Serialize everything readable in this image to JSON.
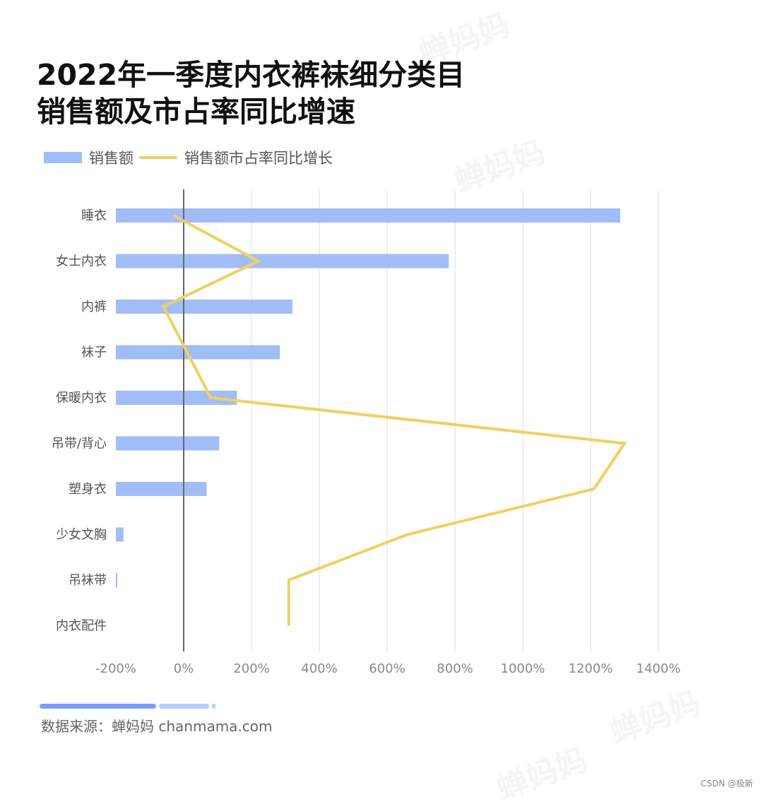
{
  "title_lines": [
    "2022年一季度内衣裤袜细分类目",
    "销售额及市占率同比增速"
  ],
  "legend": {
    "bar": "销售额",
    "line": "销售额市占率同比增长"
  },
  "colors": {
    "bar": "#a0bdf8",
    "line": "#f2cf61",
    "zero_line": "#666666",
    "grid": "#e9e9e9",
    "progress_dark": "#7aa0f6",
    "progress_light": "#b9cefa"
  },
  "chart_data": {
    "type": "bar",
    "categories": [
      "睡衣",
      "女士内衣",
      "内裤",
      "袜子",
      "保暖内衣",
      "吊带/背心",
      "塑身衣",
      "少女文胸",
      "吊袜带",
      "内衣配件"
    ],
    "series": [
      {
        "name": "销售额",
        "type": "bar",
        "values": [
          100,
          66,
          35,
          32.5,
          24,
          20.5,
          18,
          1.5,
          0.2,
          0
        ]
      },
      {
        "name": "销售额市占率同比增长",
        "type": "line",
        "values": [
          -30,
          220,
          -60,
          10,
          80,
          1300,
          1210,
          660,
          310,
          310
        ]
      }
    ],
    "x_ticks": [
      "-200%",
      "0%",
      "200%",
      "400%",
      "600%",
      "800%",
      "1000%",
      "1200%",
      "1400%"
    ],
    "xlim": [
      -200,
      1400
    ],
    "bar_value_note": "",
    "grid": true,
    "legend_position": "top-left"
  },
  "source": "数据来源：蝉妈妈 chanmama.com",
  "watermark": "蝉妈妈",
  "credit": "CSDN @极新"
}
